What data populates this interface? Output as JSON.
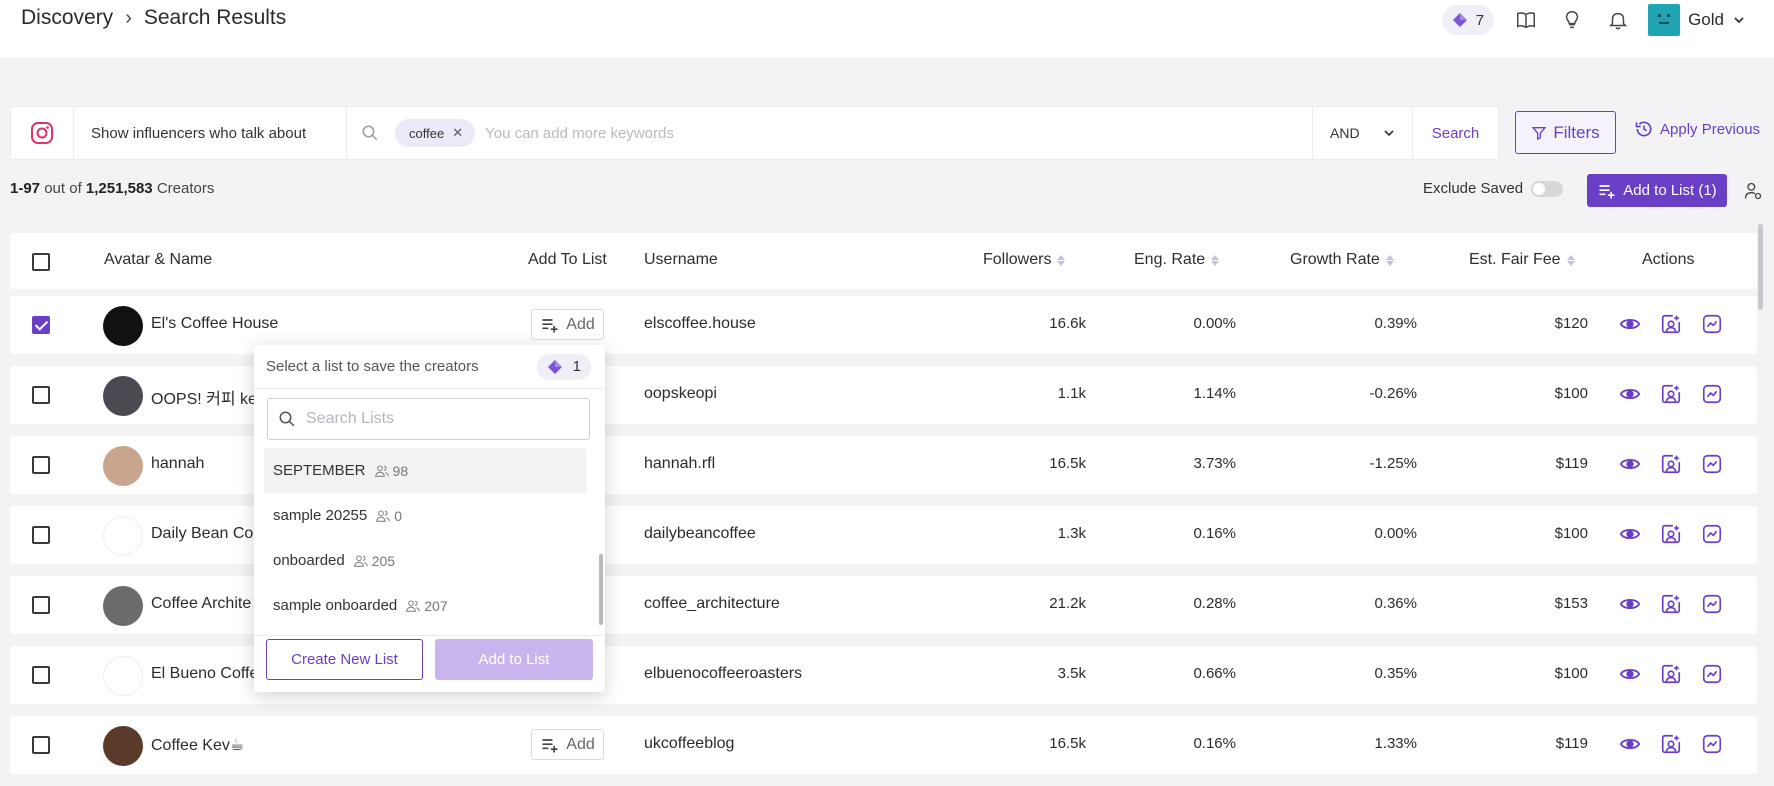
{
  "header": {
    "breadcrumb": [
      "Discovery",
      "Search Results"
    ],
    "credits": "7",
    "user_name": "Gold"
  },
  "search": {
    "platform_icon": "instagram-icon",
    "prompt": "Show influencers who talk about",
    "keywords": [
      "coffee"
    ],
    "placeholder": "You can add more keywords",
    "operator": "AND",
    "search_label": "Search",
    "filters_label": "Filters",
    "apply_previous_label": "Apply Previous"
  },
  "results": {
    "range": "1-97",
    "out_of": "out of",
    "total": "1,251,583",
    "unit": "Creators",
    "exclude_saved_label": "Exclude Saved",
    "exclude_saved": false,
    "add_to_list_label": "Add to List (1)"
  },
  "table": {
    "columns": {
      "name": "Avatar & Name",
      "add": "Add To List",
      "username": "Username",
      "followers": "Followers",
      "eng": "Eng. Rate",
      "growth": "Growth Rate",
      "fee": "Est. Fair Fee",
      "actions": "Actions"
    },
    "add_label": "Add",
    "rows": [
      {
        "name": "El's Coffee House",
        "username": "elscoffee.house",
        "followers": "16.6k",
        "eng": "0.00%",
        "growth": "0.39%",
        "fee": "$120",
        "checked": true
      },
      {
        "name": "OOPS! 커피 kec",
        "username": "oopskeopi",
        "followers": "1.1k",
        "eng": "1.14%",
        "growth": "-0.26%",
        "fee": "$100",
        "checked": false
      },
      {
        "name": "hannah",
        "username": "hannah.rfl",
        "followers": "16.5k",
        "eng": "3.73%",
        "growth": "-1.25%",
        "fee": "$119",
        "checked": false
      },
      {
        "name": "Daily Bean Co",
        "username": "dailybeancoffee",
        "followers": "1.3k",
        "eng": "0.16%",
        "growth": "0.00%",
        "fee": "$100",
        "checked": false
      },
      {
        "name": "Coffee Archite",
        "username": "coffee_architecture",
        "followers": "21.2k",
        "eng": "0.28%",
        "growth": "0.36%",
        "fee": "$153",
        "checked": false
      },
      {
        "name": "El Bueno Coffe",
        "username": "elbuenocoffeeroasters",
        "followers": "3.5k",
        "eng": "0.66%",
        "growth": "0.35%",
        "fee": "$100",
        "checked": false
      },
      {
        "name": "Coffee Kev☕",
        "username": "ukcoffeeblog",
        "followers": "16.5k",
        "eng": "0.16%",
        "growth": "1.33%",
        "fee": "$119",
        "checked": false
      }
    ]
  },
  "popup": {
    "title": "Select a list to save the creators",
    "credits": "1",
    "search_placeholder": "Search Lists",
    "lists": [
      {
        "name": "SEPTEMBER",
        "count": "98"
      },
      {
        "name": "sample 20255",
        "count": "0"
      },
      {
        "name": "onboarded",
        "count": "205"
      },
      {
        "name": "sample onboarded",
        "count": "207"
      }
    ],
    "create_label": "Create New List",
    "add_label": "Add to List"
  },
  "colors": {
    "accent": "#6a3fc6",
    "accent_disabled": "#c8b5ee",
    "background": "#f3f3f5"
  }
}
